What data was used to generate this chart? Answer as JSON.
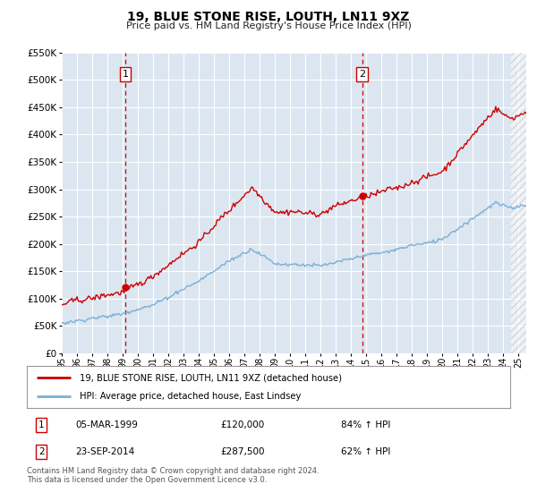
{
  "title": "19, BLUE STONE RISE, LOUTH, LN11 9XZ",
  "subtitle": "Price paid vs. HM Land Registry's House Price Index (HPI)",
  "legend_line1": "19, BLUE STONE RISE, LOUTH, LN11 9XZ (detached house)",
  "legend_line2": "HPI: Average price, detached house, East Lindsey",
  "sale1_date": "05-MAR-1999",
  "sale1_price": "£120,000",
  "sale1_hpi": "84% ↑ HPI",
  "sale1_year": 1999.17,
  "sale1_value": 120000,
  "sale2_date": "23-SEP-2014",
  "sale2_price": "£287,500",
  "sale2_hpi": "62% ↑ HPI",
  "sale2_year": 2014.72,
  "sale2_value": 287500,
  "ylim": [
    0,
    550000
  ],
  "xlim_start": 1995.0,
  "xlim_end": 2025.5,
  "red_color": "#cc0000",
  "blue_color": "#7bafd4",
  "bg_color": "#dce6f1",
  "grid_color": "#ffffff",
  "hatch_color": "#cccccc",
  "footnote": "Contains HM Land Registry data © Crown copyright and database right 2024.\nThis data is licensed under the Open Government Licence v3.0."
}
